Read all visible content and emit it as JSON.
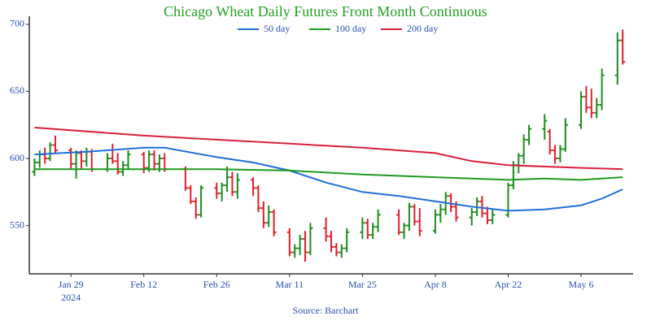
{
  "chart_data": {
    "type": "ohlc",
    "title": "Chicago Wheat Daily Futures Front Month Continuous",
    "source": "Source: Barchart",
    "up_color": "#1e8c1e",
    "down_color": "#e0202c",
    "x": [
      "2024-01-22",
      "2024-01-23",
      "2024-01-24",
      "2024-01-25",
      "2024-01-26",
      "2024-01-29",
      "2024-01-30",
      "2024-01-31",
      "2024-02-01",
      "2024-02-02",
      "2024-02-05",
      "2024-02-06",
      "2024-02-07",
      "2024-02-08",
      "2024-02-09",
      "2024-02-12",
      "2024-02-13",
      "2024-02-14",
      "2024-02-15",
      "2024-02-16",
      "2024-02-20",
      "2024-02-21",
      "2024-02-22",
      "2024-02-23",
      "2024-02-26",
      "2024-02-27",
      "2024-02-28",
      "2024-02-29",
      "2024-03-01",
      "2024-03-04",
      "2024-03-05",
      "2024-03-06",
      "2024-03-07",
      "2024-03-08",
      "2024-03-11",
      "2024-03-12",
      "2024-03-13",
      "2024-03-14",
      "2024-03-15",
      "2024-03-18",
      "2024-03-19",
      "2024-03-20",
      "2024-03-21",
      "2024-03-22",
      "2024-03-25",
      "2024-03-26",
      "2024-03-27",
      "2024-03-28",
      "2024-04-01",
      "2024-04-02",
      "2024-04-03",
      "2024-04-04",
      "2024-04-05",
      "2024-04-08",
      "2024-04-09",
      "2024-04-10",
      "2024-04-11",
      "2024-04-12",
      "2024-04-15",
      "2024-04-16",
      "2024-04-17",
      "2024-04-18",
      "2024-04-19",
      "2024-04-22",
      "2024-04-23",
      "2024-04-24",
      "2024-04-25",
      "2024-04-26",
      "2024-04-29",
      "2024-04-30",
      "2024-05-01",
      "2024-05-02",
      "2024-05-03",
      "2024-05-06",
      "2024-05-07",
      "2024-05-08",
      "2024-05-09",
      "2024-05-10",
      "2024-05-13",
      "2024-05-14"
    ],
    "open": [
      590,
      597,
      603,
      600,
      610,
      606,
      596,
      604,
      598,
      605,
      592,
      600,
      598,
      590,
      595,
      603,
      593,
      603,
      596,
      600,
      592,
      578,
      568,
      558,
      578,
      574,
      580,
      586,
      575,
      584,
      578,
      563,
      552,
      560,
      545,
      530,
      533,
      540,
      530,
      548,
      542,
      534,
      530,
      533,
      545,
      552,
      543,
      549,
      558,
      545,
      550,
      564,
      553,
      546,
      558,
      562,
      572,
      564,
      556,
      560,
      568,
      559,
      554,
      558,
      580,
      595,
      602,
      614,
      622,
      620,
      606,
      600,
      607,
      625,
      646,
      638,
      634,
      640,
      662,
      688
    ],
    "high": [
      600,
      606,
      608,
      612,
      617,
      608,
      606,
      606,
      608,
      607,
      604,
      611,
      604,
      598,
      606,
      605,
      606,
      606,
      603,
      604,
      594,
      580,
      571,
      580,
      582,
      582,
      594,
      590,
      589,
      586,
      580,
      568,
      565,
      562,
      548,
      536,
      543,
      546,
      552,
      556,
      546,
      537,
      536,
      548,
      556,
      555,
      552,
      562,
      562,
      552,
      567,
      566,
      563,
      562,
      566,
      575,
      574,
      568,
      563,
      571,
      572,
      564,
      562,
      582,
      598,
      604,
      618,
      625,
      633,
      622,
      610,
      610,
      630,
      650,
      654,
      652,
      645,
      667,
      694,
      696
    ],
    "low": [
      587,
      593,
      596,
      598,
      604,
      592,
      585,
      592,
      594,
      590,
      590,
      596,
      588,
      587,
      592,
      589,
      590,
      591,
      590,
      590,
      576,
      566,
      555,
      556,
      570,
      568,
      575,
      572,
      570,
      572,
      560,
      548,
      549,
      542,
      527,
      526,
      528,
      523,
      528,
      538,
      530,
      527,
      526,
      530,
      540,
      540,
      540,
      545,
      543,
      540,
      546,
      550,
      542,
      544,
      552,
      558,
      560,
      553,
      550,
      557,
      556,
      551,
      551,
      556,
      577,
      589,
      596,
      610,
      614,
      603,
      596,
      597,
      605,
      622,
      634,
      630,
      630,
      636,
      655,
      670
    ],
    "close": [
      597,
      603,
      600,
      610,
      606,
      596,
      604,
      598,
      605,
      592,
      600,
      598,
      590,
      595,
      603,
      593,
      603,
      596,
      600,
      592,
      578,
      568,
      558,
      578,
      574,
      580,
      586,
      575,
      584,
      578,
      563,
      552,
      560,
      545,
      530,
      533,
      540,
      530,
      548,
      542,
      534,
      530,
      533,
      545,
      552,
      543,
      549,
      558,
      545,
      550,
      564,
      553,
      546,
      558,
      562,
      572,
      564,
      556,
      560,
      568,
      559,
      554,
      558,
      580,
      595,
      602,
      614,
      622,
      628,
      606,
      600,
      607,
      625,
      646,
      638,
      634,
      640,
      662,
      688,
      672
    ],
    "series": [
      {
        "name": "50 day",
        "color": "#1f6fd8",
        "x": [
          "2024-01-22",
          "2024-02-01",
          "2024-02-12",
          "2024-02-16",
          "2024-02-26",
          "2024-03-04",
          "2024-03-11",
          "2024-03-18",
          "2024-03-25",
          "2024-04-01",
          "2024-04-08",
          "2024-04-15",
          "2024-04-22",
          "2024-04-29",
          "2024-05-06",
          "2024-05-10",
          "2024-05-14"
        ],
        "values": [
          603,
          605,
          608,
          608,
          601,
          597,
          591,
          582,
          575,
          572,
          568,
          564,
          561,
          562,
          565,
          570,
          577
        ]
      },
      {
        "name": "100 day",
        "color": "#1e9a1e",
        "x": [
          "2024-01-22",
          "2024-02-12",
          "2024-02-26",
          "2024-03-11",
          "2024-03-25",
          "2024-04-08",
          "2024-04-22",
          "2024-04-29",
          "2024-05-06",
          "2024-05-14"
        ],
        "values": [
          592,
          592,
          592,
          591,
          588,
          586,
          584,
          585,
          584,
          586
        ]
      },
      {
        "name": "200 day",
        "color": "#d6203a",
        "x": [
          "2024-01-22",
          "2024-02-12",
          "2024-02-26",
          "2024-03-11",
          "2024-03-25",
          "2024-04-08",
          "2024-04-15",
          "2024-04-22",
          "2024-05-06",
          "2024-05-14"
        ],
        "values": [
          623,
          617,
          614,
          611,
          608,
          604,
          598,
          595,
          593,
          592
        ]
      }
    ],
    "xlim": [
      "2024-01-21",
      "2024-05-16"
    ],
    "xticks": [
      {
        "value": "2024-01-29",
        "label": "Jan 29"
      },
      {
        "value": "2024-02-12",
        "label": "Feb 12"
      },
      {
        "value": "2024-02-26",
        "label": "Feb 26"
      },
      {
        "value": "2024-03-11",
        "label": "Mar 11"
      },
      {
        "value": "2024-03-25",
        "label": "Mar 25"
      },
      {
        "value": "2024-04-08",
        "label": "Apr 8"
      },
      {
        "value": "2024-04-22",
        "label": "Apr 22"
      },
      {
        "value": "2024-05-06",
        "label": "May 6"
      }
    ],
    "xtick_year": "2024",
    "ylim": [
      514,
      706
    ],
    "yticks": [
      550,
      600,
      650,
      700
    ],
    "grid": false,
    "legend": "top"
  }
}
